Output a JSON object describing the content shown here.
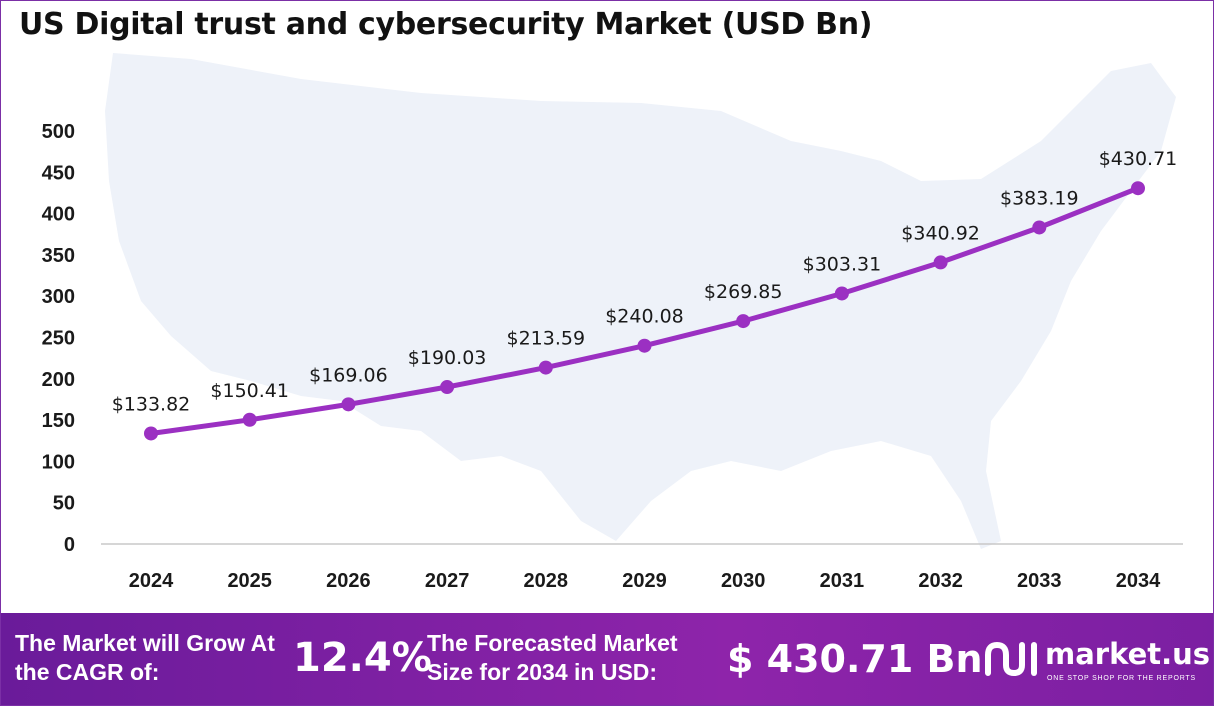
{
  "chart_data": {
    "type": "line",
    "title": "US Digital trust and cybersecurity Market (USD Bn)",
    "categories": [
      "2024",
      "2025",
      "2026",
      "2027",
      "2028",
      "2029",
      "2030",
      "2031",
      "2032",
      "2033",
      "2034"
    ],
    "values": [
      133.82,
      150.41,
      169.06,
      190.03,
      213.59,
      240.08,
      269.85,
      303.31,
      340.92,
      383.19,
      430.71
    ],
    "data_labels": [
      "$133.82",
      "$150.41",
      "$169.06",
      "$190.03",
      "$213.59",
      "$240.08",
      "$269.85",
      "$303.31",
      "$340.92",
      "$383.19",
      "$430.71"
    ],
    "y_ticks": [
      0,
      50,
      100,
      150,
      200,
      250,
      300,
      350,
      400,
      450,
      500
    ],
    "ylim": [
      0,
      500
    ],
    "grid": false,
    "line_color": "#9b30c2",
    "background_map_color": "#eef2f9"
  },
  "footer": {
    "cagr_label": "The Market will Grow At the CAGR of:",
    "cagr_value": "12.4%",
    "size_label": "The Forecasted Market Size for 2034 in USD:",
    "size_value": "$ 430.71 Bn",
    "background_color": "#7b1fa2"
  },
  "brand": {
    "name": "market.us",
    "tagline": "ONE STOP SHOP FOR THE REPORTS",
    "logo_icon": "market-us-logo-icon"
  }
}
